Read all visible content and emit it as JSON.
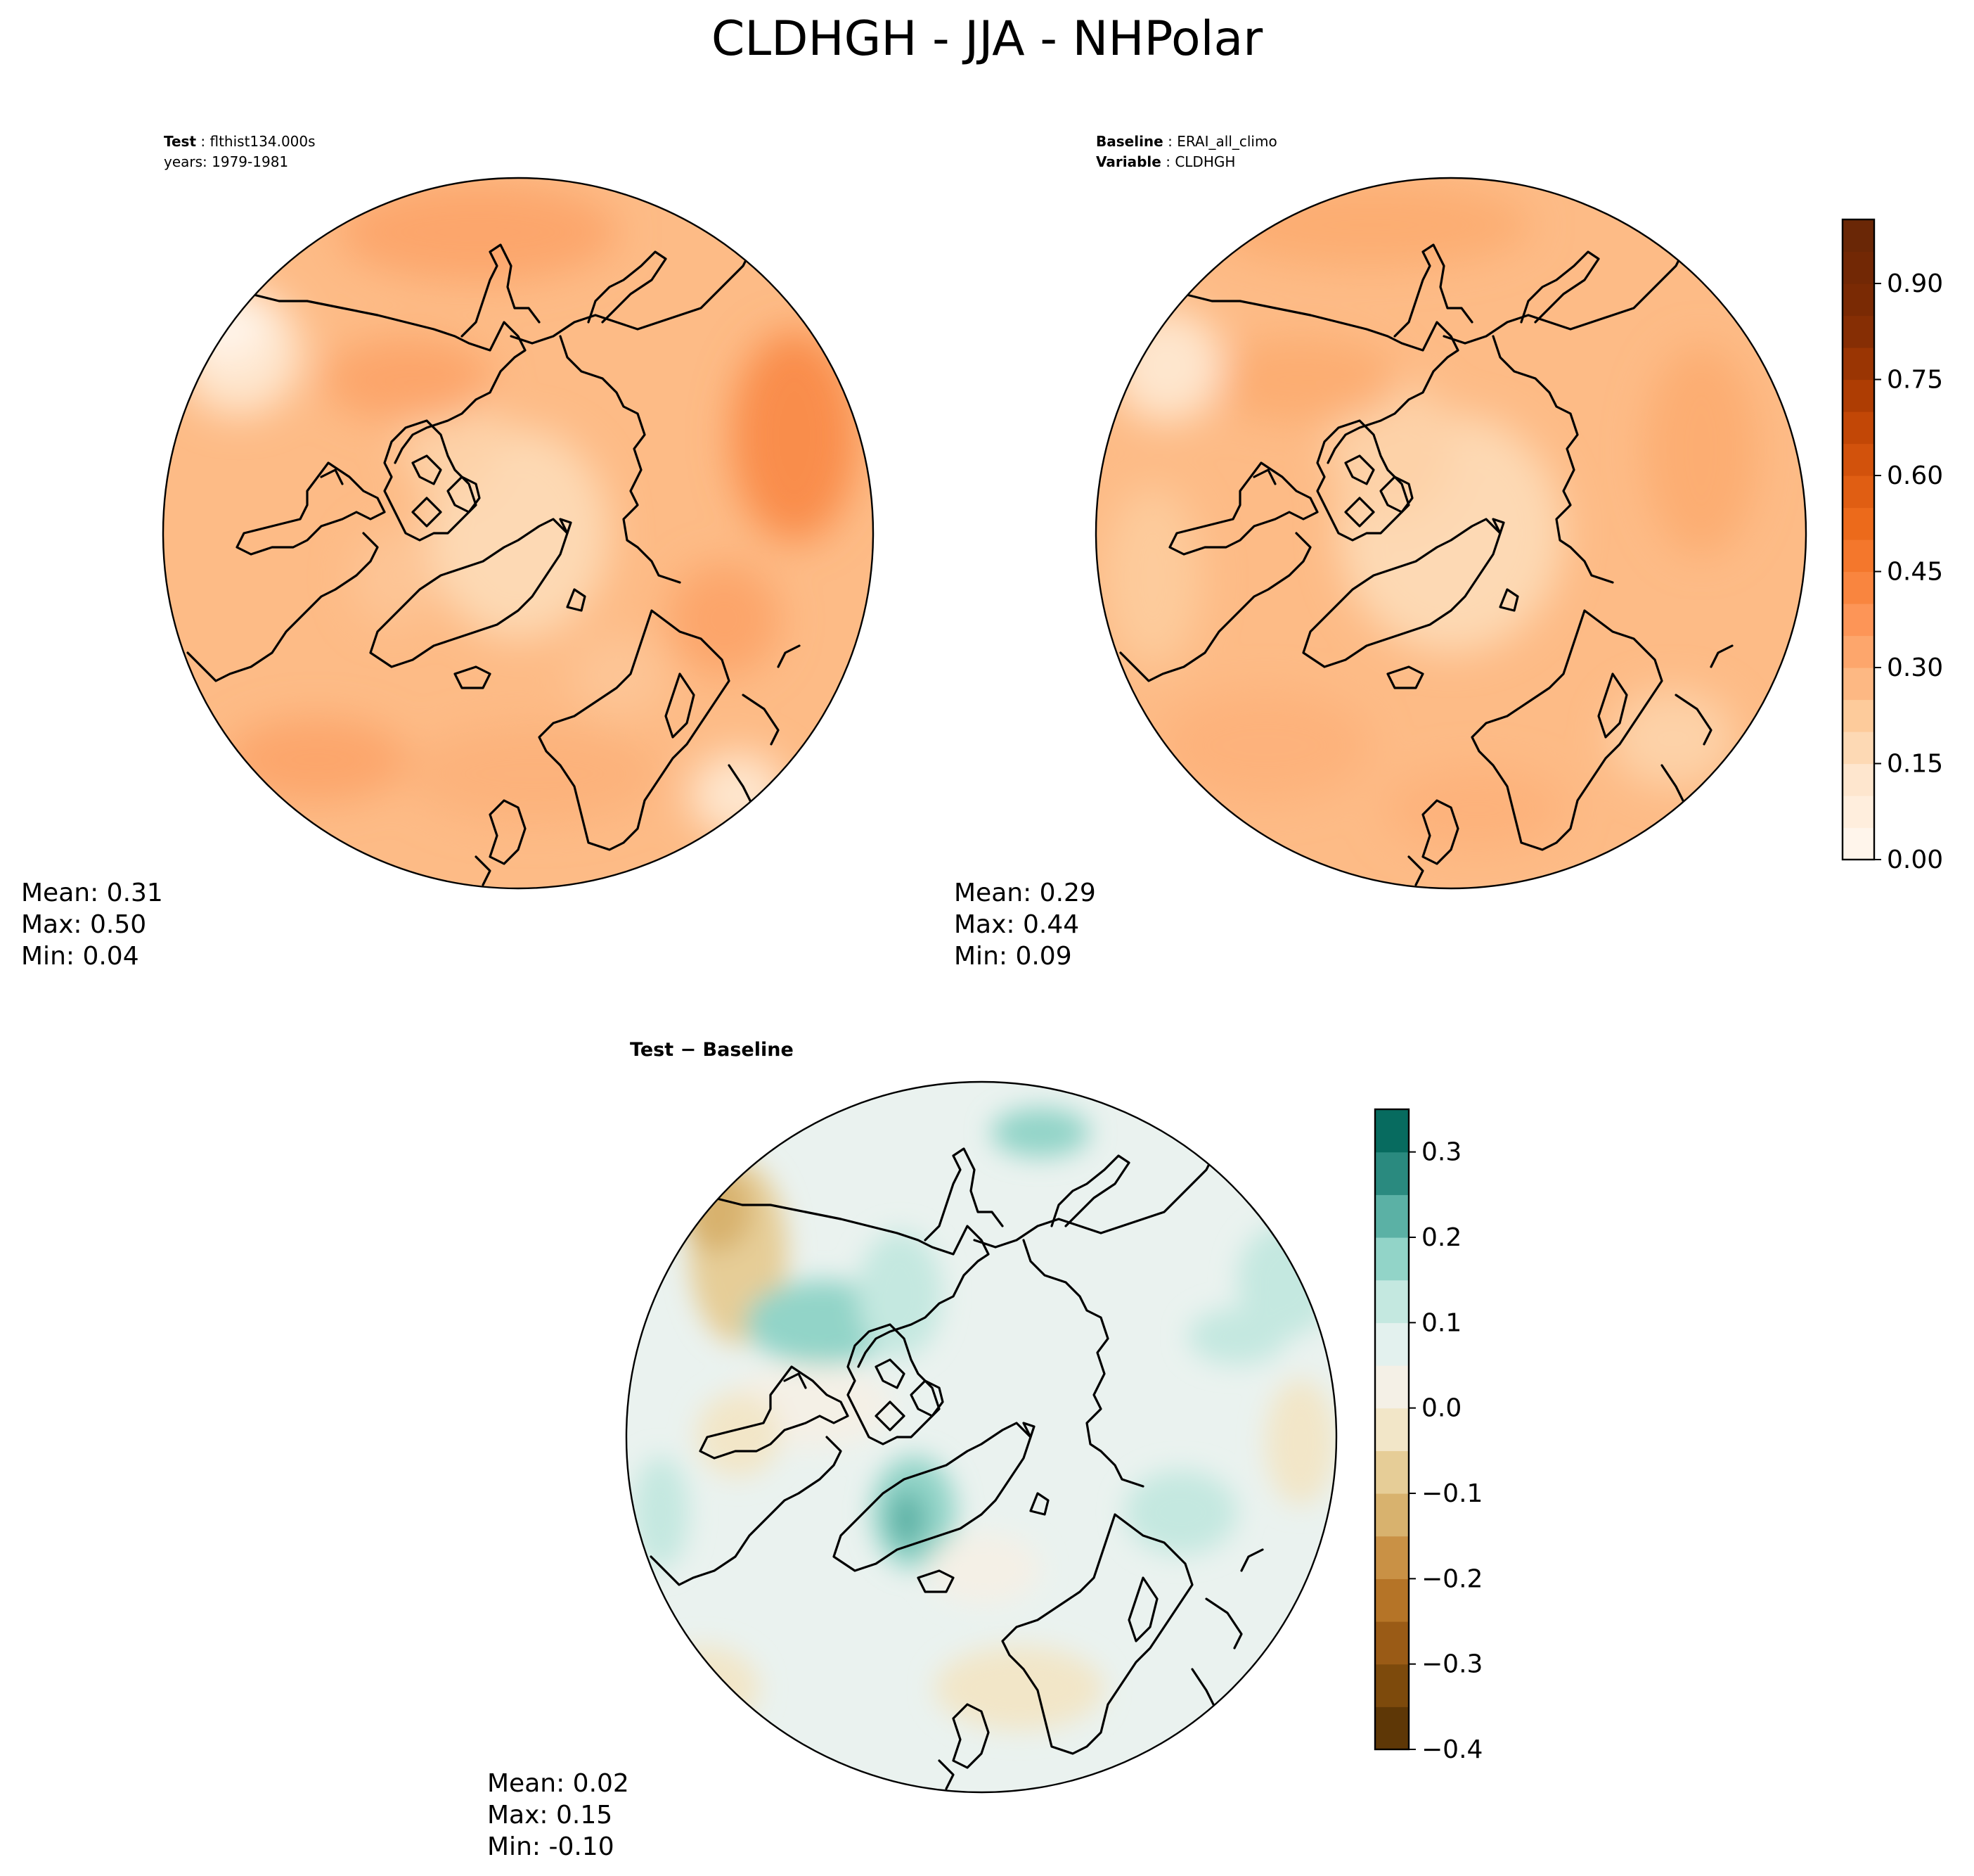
{
  "figure": {
    "title": "CLDHGH - JJA - NHPolar"
  },
  "panels": {
    "test": {
      "header_label": "Test",
      "header_value": "flthist134.000s",
      "subheader": "years: 1979-1981",
      "stats": {
        "mean": "Mean:  0.31",
        "max": "Max:  0.50",
        "min": "Min:  0.04"
      }
    },
    "baseline": {
      "header_label": "Baseline",
      "header_value": "ERAI_all_climo",
      "var_label": "Variable",
      "var_value": "CLDHGH",
      "stats": {
        "mean": "Mean:  0.29",
        "max": "Max:  0.44",
        "min": "Min:  0.09"
      }
    },
    "diff": {
      "title": "Test − Baseline",
      "stats": {
        "mean": "Mean:  0.02",
        "max": "Max:  0.15",
        "min": "Min: -0.10"
      }
    }
  },
  "colorbars": {
    "main": {
      "colormap": "Oranges",
      "levels": [
        0.0,
        0.05,
        0.1,
        0.15,
        0.2,
        0.25,
        0.3,
        0.35,
        0.4,
        0.45,
        0.5,
        0.55,
        0.6,
        0.65,
        0.7,
        0.75,
        0.8,
        0.85,
        0.9,
        0.95,
        1.0
      ],
      "colors": [
        "#fff5eb",
        "#ffeedd",
        "#fee6ce",
        "#fdd9b4",
        "#fdcb9b",
        "#fdb883",
        "#fda66c",
        "#fd9557",
        "#f9853f",
        "#f4772c",
        "#ec6a1b",
        "#e05e13",
        "#d2520c",
        "#c24706",
        "#ae3d03",
        "#9a3503",
        "#862e04",
        "#7a2a04",
        "#722805",
        "#6a2706"
      ],
      "ticks": [
        "0.00",
        "0.15",
        "0.30",
        "0.45",
        "0.60",
        "0.75",
        "0.90"
      ],
      "tick_values": [
        0.0,
        0.15,
        0.3,
        0.45,
        0.6,
        0.75,
        0.9
      ]
    },
    "diff": {
      "colormap": "BrBG",
      "levels": [
        -0.4,
        -0.35,
        -0.3,
        -0.25,
        -0.2,
        -0.15,
        -0.1,
        -0.05,
        0.0,
        0.05,
        0.1,
        0.15,
        0.2,
        0.25,
        0.3,
        0.35
      ],
      "colors": [
        "#5e3706",
        "#7d4a0c",
        "#9a5b16",
        "#b57427",
        "#c99145",
        "#d8b26e",
        "#e6cd97",
        "#f2e6c8",
        "#f4f0e6",
        "#e3f1ee",
        "#c4e8e0",
        "#92d4c8",
        "#5bb1a5",
        "#2a8a7f",
        "#076b5f",
        "#00473c"
      ],
      "ticks": [
        "−0.4",
        "−0.3",
        "−0.2",
        "−0.1",
        "0.0",
        "0.1",
        "0.2",
        "0.3"
      ],
      "tick_values": [
        -0.4,
        -0.3,
        -0.2,
        -0.1,
        0.0,
        0.1,
        0.2,
        0.3
      ]
    }
  },
  "chart_data": [
    {
      "type": "heatmap",
      "title": "Test: flthist134.000s (years: 1979-1981)",
      "projection": "north polar stereographic",
      "variable": "CLDHGH",
      "mean": 0.31,
      "max": 0.5,
      "min": 0.04
    },
    {
      "type": "heatmap",
      "title": "Baseline: ERAI_all_climo",
      "projection": "north polar stereographic",
      "variable": "CLDHGH",
      "mean": 0.29,
      "max": 0.44,
      "min": 0.09
    },
    {
      "type": "heatmap",
      "title": "Test − Baseline",
      "projection": "north polar stereographic",
      "variable": "CLDHGH",
      "mean": 0.02,
      "max": 0.15,
      "min": -0.1
    }
  ]
}
